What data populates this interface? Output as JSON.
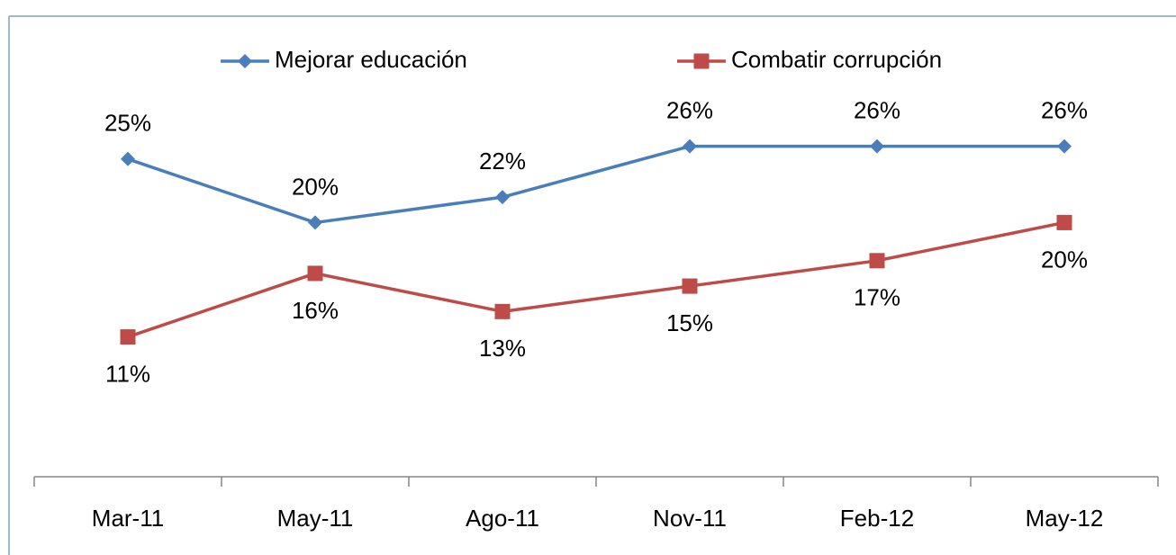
{
  "chart_data": {
    "type": "line",
    "categories": [
      "Mar-11",
      "May-11",
      "Ago-11",
      "Nov-11",
      "Feb-12",
      "May-12"
    ],
    "series": [
      {
        "name": "Mejorar educación",
        "color": "#4a7ebb",
        "marker": "diamond",
        "values": [
          25,
          20,
          22,
          26,
          26,
          26
        ],
        "value_labels": [
          "25%",
          "20%",
          "22%",
          "26%",
          "26%",
          "26%"
        ],
        "label_position": "above"
      },
      {
        "name": "Combatir corrupción",
        "color": "#be4b48",
        "marker": "square",
        "values": [
          11,
          16,
          13,
          15,
          17,
          20
        ],
        "value_labels": [
          "11%",
          "16%",
          "13%",
          "15%",
          "17%",
          "20%"
        ],
        "label_position": "below"
      }
    ],
    "ylim": [
      0,
      35
    ],
    "legend": "top"
  }
}
